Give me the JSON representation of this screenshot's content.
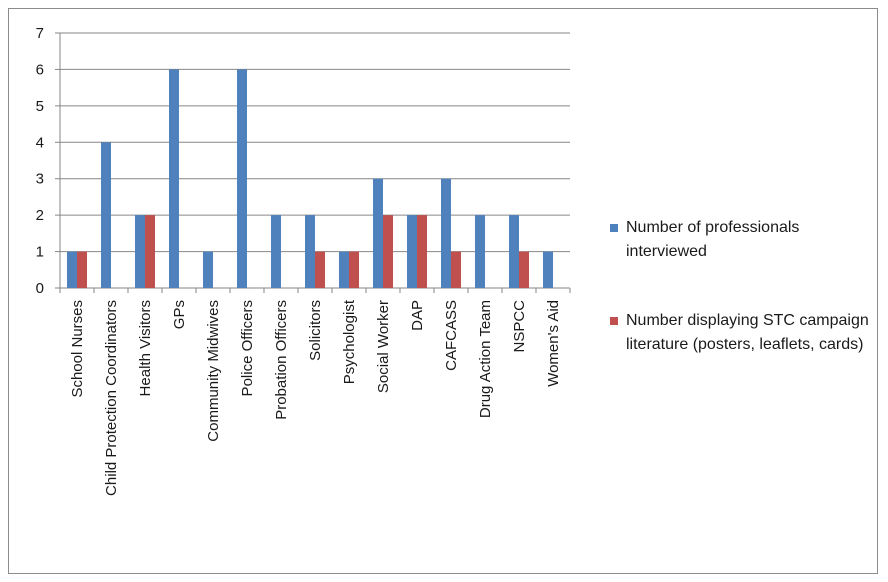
{
  "chart_data": {
    "type": "bar",
    "title": "",
    "xlabel": "",
    "ylabel": "",
    "ylim": [
      0,
      7
    ],
    "yticks": [
      "0",
      "1",
      "2",
      "3",
      "4",
      "5",
      "6",
      "7"
    ],
    "grid": true,
    "legend_position": "right",
    "categories": [
      "School Nurses",
      "Child Protection Coordinators",
      "Health Visitors",
      "GPs",
      "Community Midwives",
      "Police Officers",
      "Probation Officers",
      "Solicitors",
      "Psychologist",
      "Social Worker",
      "DAP",
      "CAFCASS",
      "Drug Action Team",
      "NSPCC",
      "Women's Aid"
    ],
    "series": [
      {
        "name": "Number of professionals interviewed",
        "color": "#4f81bd",
        "values": [
          1,
          4,
          2,
          6,
          1,
          6,
          2,
          2,
          1,
          3,
          2,
          3,
          2,
          2,
          1
        ]
      },
      {
        "name": "Number displaying STC campaign literature (posters, leaflets, cards)",
        "color": "#c0504d",
        "values": [
          1,
          0,
          2,
          0,
          0,
          0,
          0,
          1,
          1,
          2,
          2,
          1,
          0,
          1,
          0
        ]
      }
    ]
  }
}
